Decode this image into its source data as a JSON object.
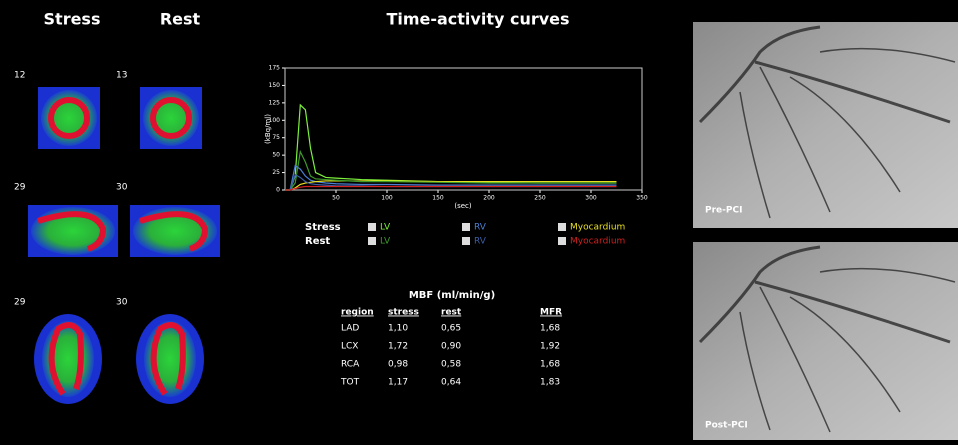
{
  "panels": {
    "stress_title": "Stress",
    "rest_title": "Rest",
    "slices": [
      {
        "stress": "12",
        "rest": "13"
      },
      {
        "stress": "29",
        "rest": "30"
      },
      {
        "stress": "29",
        "rest": "30"
      }
    ]
  },
  "chart_data": {
    "type": "line",
    "title": "Time-activity curves",
    "y_label": "(kBq/ml)",
    "x_label": "(sec)",
    "x": [
      0,
      5,
      10,
      15,
      20,
      25,
      30,
      40,
      50,
      75,
      100,
      150,
      200,
      250,
      300,
      325
    ],
    "xlim": [
      0,
      350
    ],
    "xticks": [
      50,
      100,
      150,
      200,
      250,
      300,
      350
    ],
    "ylim": [
      0,
      175
    ],
    "yticks": [
      0,
      25,
      50,
      75,
      100,
      125,
      150,
      175
    ],
    "series": [
      {
        "name": "LV",
        "group": "Stress",
        "color": "#7cf23c",
        "values": [
          0,
          0,
          20,
          122,
          115,
          60,
          25,
          18,
          17,
          15,
          14,
          12,
          11,
          10,
          10,
          10
        ]
      },
      {
        "name": "RV",
        "group": "Stress",
        "color": "#4a7fd4",
        "values": [
          0,
          0,
          35,
          30,
          20,
          14,
          12,
          10,
          9,
          8,
          8,
          7,
          7,
          7,
          7,
          7
        ]
      },
      {
        "name": "Myocardium",
        "group": "Stress",
        "color": "#e8e020",
        "values": [
          0,
          0,
          3,
          8,
          10,
          11,
          12,
          13,
          13,
          13,
          13,
          12,
          12,
          12,
          12,
          12
        ]
      },
      {
        "name": "LV",
        "group": "Rest",
        "color": "#3d9a2a",
        "values": [
          0,
          0,
          10,
          55,
          40,
          20,
          16,
          15,
          14,
          12,
          12,
          11,
          10,
          10,
          10,
          10
        ]
      },
      {
        "name": "RV",
        "group": "Rest",
        "color": "#3a5ea8",
        "values": [
          0,
          0,
          22,
          18,
          12,
          9,
          8,
          7,
          6,
          6,
          5,
          5,
          5,
          5,
          5,
          5
        ]
      },
      {
        "name": "Myocardium",
        "group": "Rest",
        "color": "#d02020",
        "values": [
          0,
          0,
          2,
          4,
          5,
          5,
          5,
          5,
          5,
          5,
          5,
          5,
          5,
          5,
          5,
          5
        ]
      }
    ]
  },
  "table": {
    "title": "MBF (ml/min/g)",
    "header": [
      "region",
      "stress",
      "rest",
      "MFR"
    ],
    "rows": [
      [
        "LAD",
        "1,10",
        "0,65",
        "1,68"
      ],
      [
        "LCX",
        "1,72",
        "0,90",
        "1,92"
      ],
      [
        "RCA",
        "0,98",
        "0,58",
        "1,68"
      ],
      [
        "TOT",
        "1,17",
        "0,64",
        "1,83"
      ]
    ]
  },
  "angiograms": [
    "Pre-PCI",
    "Post-PCI"
  ]
}
